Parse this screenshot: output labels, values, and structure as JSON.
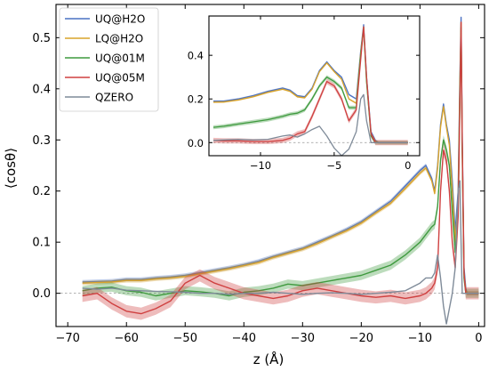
{
  "chart_data": [
    {
      "type": "line",
      "xlabel": "z (Å)",
      "ylabel": "⟨cosθ⟩",
      "xlim": [
        -72,
        1
      ],
      "ylim": [
        -0.065,
        0.565
      ],
      "xticks": [
        -70,
        -60,
        -50,
        -40,
        -30,
        -20,
        -10,
        0
      ],
      "xtick_labels": [
        "−70",
        "−60",
        "−50",
        "−40",
        "−30",
        "−20",
        "−10",
        "0"
      ],
      "yticks": [
        0.0,
        0.1,
        0.2,
        0.3,
        0.4,
        0.5
      ],
      "ytick_labels": [
        "0.0",
        "0.1",
        "0.2",
        "0.3",
        "0.4",
        "0.5"
      ],
      "reference_line": {
        "y": 0.0,
        "style": "dashed",
        "color": "#999999"
      },
      "legend": {
        "position": "top-left",
        "entries": [
          "UQ@H2O",
          "LQ@H2O",
          "UQ@01M",
          "UQ@05M",
          "QZERO"
        ]
      },
      "series": [
        {
          "name": "UQ@H2O",
          "color": "#4a72c4",
          "band": 0.004,
          "x": [
            -67.5,
            -65,
            -62.5,
            -60,
            -57.5,
            -55,
            -52.5,
            -50,
            -47.5,
            -45,
            -42.5,
            -40,
            -37.5,
            -35,
            -32.5,
            -30,
            -27.5,
            -25,
            -22.5,
            -20,
            -17.5,
            -15,
            -12.5,
            -10,
            -9,
            -8,
            -7.5,
            -7,
            -6.5,
            -6,
            -5.5,
            -5,
            -4.5,
            -4,
            -3.5,
            -3.2,
            -3,
            -2.8,
            -2.5,
            -2.2,
            -2,
            -1,
            0
          ],
          "y": [
            0.022,
            0.023,
            0.024,
            0.027,
            0.027,
            0.03,
            0.032,
            0.035,
            0.04,
            0.045,
            0.05,
            0.056,
            0.063,
            0.072,
            0.08,
            0.088,
            0.1,
            0.112,
            0.125,
            0.14,
            0.16,
            0.18,
            0.21,
            0.24,
            0.25,
            0.225,
            0.2,
            0.25,
            0.33,
            0.37,
            0.33,
            0.3,
            0.22,
            0.12,
            0.2,
            0.42,
            0.54,
            0.3,
            0.05,
            0.01,
            0.0,
            0.0,
            0.0
          ]
        },
        {
          "name": "LQ@H2O",
          "color": "#d9a32a",
          "band": 0.004,
          "x": [
            -67.5,
            -65,
            -62.5,
            -60,
            -57.5,
            -55,
            -52.5,
            -50,
            -47.5,
            -45,
            -42.5,
            -40,
            -37.5,
            -35,
            -32.5,
            -30,
            -27.5,
            -25,
            -22.5,
            -20,
            -17.5,
            -15,
            -12.5,
            -10,
            -9,
            -8,
            -7.5,
            -7,
            -6.5,
            -6,
            -5.5,
            -5,
            -4.5,
            -4,
            -3.5,
            -3.2,
            -3,
            -2.8,
            -2.5,
            -2.2,
            -2,
            -1,
            0
          ],
          "y": [
            0.02,
            0.021,
            0.022,
            0.025,
            0.025,
            0.028,
            0.03,
            0.033,
            0.038,
            0.043,
            0.048,
            0.054,
            0.06,
            0.07,
            0.078,
            0.086,
            0.097,
            0.11,
            0.122,
            0.137,
            0.157,
            0.176,
            0.205,
            0.235,
            0.245,
            0.22,
            0.195,
            0.245,
            0.325,
            0.365,
            0.325,
            0.29,
            0.2,
            0.1,
            0.18,
            0.41,
            0.53,
            0.28,
            0.04,
            0.005,
            0.0,
            0.0,
            0.0
          ]
        },
        {
          "name": "UQ@01M",
          "color": "#3f9a3f",
          "band": 0.009,
          "x": [
            -67.5,
            -65,
            -62.5,
            -60,
            -57.5,
            -55,
            -52.5,
            -50,
            -47.5,
            -45,
            -42.5,
            -40,
            -37.5,
            -35,
            -32.5,
            -30,
            -27.5,
            -25,
            -22.5,
            -20,
            -17.5,
            -15,
            -12.5,
            -10,
            -9,
            -8,
            -7.5,
            -7,
            -6.5,
            -6,
            -5.5,
            -5,
            -4.5,
            -4,
            -3.5,
            -3.2,
            -3,
            -2.8,
            -2.5,
            -2.2,
            -2,
            -1,
            0
          ],
          "y": [
            0.005,
            0.01,
            0.012,
            0.005,
            0.002,
            -0.005,
            0.0,
            0.005,
            0.003,
            0.0,
            -0.005,
            0.002,
            0.005,
            0.01,
            0.018,
            0.015,
            0.02,
            0.025,
            0.03,
            0.035,
            0.045,
            0.055,
            0.075,
            0.1,
            0.115,
            0.13,
            0.135,
            0.17,
            0.26,
            0.3,
            0.28,
            0.25,
            0.16,
            0.08,
            0.16,
            0.4,
            0.52,
            0.28,
            0.03,
            0.0,
            0.0,
            0.0,
            0.0
          ]
        },
        {
          "name": "UQ@05M",
          "color": "#cf4040",
          "band": 0.012,
          "x": [
            -67.5,
            -65,
            -62.5,
            -60,
            -57.5,
            -55,
            -52.5,
            -50,
            -47.5,
            -45,
            -42.5,
            -40,
            -37.5,
            -35,
            -32.5,
            -30,
            -27.5,
            -25,
            -22.5,
            -20,
            -17.5,
            -15,
            -12.5,
            -10,
            -9,
            -8,
            -7.5,
            -7,
            -6.5,
            -6,
            -5.5,
            -5,
            -4.5,
            -4,
            -3.5,
            -3.2,
            -3,
            -2.8,
            -2.5,
            -2.2,
            -2,
            -1,
            0
          ],
          "y": [
            -0.005,
            0.0,
            -0.02,
            -0.035,
            -0.04,
            -0.03,
            -0.015,
            0.02,
            0.035,
            0.02,
            0.01,
            0.0,
            -0.005,
            -0.01,
            -0.005,
            0.005,
            0.01,
            0.005,
            0.0,
            -0.005,
            -0.008,
            -0.005,
            -0.01,
            -0.005,
            0.0,
            0.01,
            0.02,
            0.05,
            0.2,
            0.28,
            0.26,
            0.2,
            0.1,
            0.05,
            0.15,
            0.38,
            0.53,
            0.3,
            0.04,
            0.0,
            0.0,
            0.0,
            0.0
          ]
        },
        {
          "name": "QZERO",
          "color": "#7f8b99",
          "band": 0.0,
          "x": [
            -67.5,
            -65,
            -62.5,
            -60,
            -57.5,
            -55,
            -52.5,
            -50,
            -47.5,
            -45,
            -42.5,
            -40,
            -37.5,
            -35,
            -32.5,
            -30,
            -27.5,
            -25,
            -22.5,
            -20,
            -17.5,
            -15,
            -12.5,
            -10,
            -9,
            -8,
            -7.5,
            -7,
            -6.5,
            -6,
            -5.5,
            -5,
            -4.5,
            -4,
            -3.5,
            -3.2,
            -3,
            -2.8,
            -2.5,
            -2.2,
            -2,
            -1,
            0
          ],
          "y": [
            0.01,
            0.008,
            0.01,
            0.006,
            0.005,
            0.004,
            0.003,
            0.002,
            0.0,
            0.0,
            -0.002,
            0.0,
            0.0,
            0.002,
            0.0,
            -0.002,
            0.0,
            0.001,
            0.0,
            -0.002,
            0.0,
            0.002,
            0.005,
            0.02,
            0.03,
            0.03,
            0.04,
            0.075,
            0.03,
            -0.025,
            -0.06,
            -0.03,
            0.0,
            0.05,
            0.2,
            0.22,
            0.1,
            0.0,
            0.0,
            0.0,
            0.0,
            0.0,
            0.0
          ]
        }
      ]
    },
    {
      "type": "line",
      "role": "inset",
      "xlabel": "",
      "ylabel": "",
      "xlim": [
        -13.5,
        0.8
      ],
      "ylim": [
        -0.06,
        0.58
      ],
      "xticks": [
        -10,
        -5,
        0
      ],
      "xtick_labels": [
        "−10",
        "−5",
        "0"
      ],
      "yticks": [
        0.0,
        0.2,
        0.4
      ],
      "ytick_labels": [
        "0.0",
        "0.2",
        "0.4"
      ],
      "reference_line": {
        "y": 0.0,
        "style": "dashed",
        "color": "#999999"
      },
      "series": [
        {
          "name": "UQ@H2O",
          "color": "#4a72c4",
          "band": 0.004,
          "x": [
            -13.2,
            -12.5,
            -11.5,
            -10.5,
            -9.5,
            -8.5,
            -8,
            -7.5,
            -7,
            -6.5,
            -6,
            -5.5,
            -5,
            -4.5,
            -4,
            -3.5,
            -3.2,
            -3,
            -2.8,
            -2.5,
            -2.2,
            -2,
            -1,
            0
          ],
          "y": [
            0.19,
            0.19,
            0.2,
            0.215,
            0.235,
            0.25,
            0.24,
            0.215,
            0.21,
            0.25,
            0.33,
            0.37,
            0.33,
            0.3,
            0.22,
            0.2,
            0.42,
            0.54,
            0.3,
            0.05,
            0.01,
            0.0,
            0.0,
            0.0
          ]
        },
        {
          "name": "LQ@H2O",
          "color": "#d9a32a",
          "band": 0.004,
          "x": [
            -13.2,
            -12.5,
            -11.5,
            -10.5,
            -9.5,
            -8.5,
            -8,
            -7.5,
            -7,
            -6.5,
            -6,
            -5.5,
            -5,
            -4.5,
            -4,
            -3.5,
            -3.2,
            -3,
            -2.8,
            -2.5,
            -2.2,
            -2,
            -1,
            0
          ],
          "y": [
            0.185,
            0.186,
            0.195,
            0.21,
            0.23,
            0.245,
            0.235,
            0.21,
            0.205,
            0.245,
            0.325,
            0.365,
            0.325,
            0.29,
            0.2,
            0.18,
            0.41,
            0.53,
            0.28,
            0.04,
            0.005,
            0.0,
            0.0,
            0.0
          ]
        },
        {
          "name": "UQ@01M",
          "color": "#3f9a3f",
          "band": 0.009,
          "x": [
            -13.2,
            -12.5,
            -11.5,
            -10.5,
            -9.5,
            -8.5,
            -8,
            -7.5,
            -7,
            -6.5,
            -6,
            -5.5,
            -5,
            -4.5,
            -4,
            -3.5,
            -3.2,
            -3,
            -2.8,
            -2.5,
            -2.2,
            -2,
            -1,
            0
          ],
          "y": [
            0.07,
            0.075,
            0.085,
            0.095,
            0.105,
            0.12,
            0.13,
            0.135,
            0.15,
            0.2,
            0.26,
            0.3,
            0.28,
            0.25,
            0.16,
            0.16,
            0.4,
            0.52,
            0.28,
            0.03,
            0.0,
            0.0,
            0.0,
            0.0
          ]
        },
        {
          "name": "UQ@05M",
          "color": "#cf4040",
          "band": 0.012,
          "x": [
            -13.2,
            -12.5,
            -11.5,
            -10.5,
            -9.5,
            -8.5,
            -8,
            -7.5,
            -7,
            -6.5,
            -6,
            -5.5,
            -5,
            -4.5,
            -4,
            -3.5,
            -3.2,
            -3,
            -2.8,
            -2.5,
            -2.2,
            -2,
            -1,
            0
          ],
          "y": [
            0.01,
            0.008,
            0.008,
            0.005,
            0.005,
            0.01,
            0.02,
            0.04,
            0.05,
            0.12,
            0.2,
            0.28,
            0.26,
            0.2,
            0.1,
            0.15,
            0.38,
            0.53,
            0.3,
            0.04,
            0.0,
            0.0,
            0.0,
            0.0
          ]
        },
        {
          "name": "QZERO",
          "color": "#7f8b99",
          "band": 0.0,
          "x": [
            -13.2,
            -12.5,
            -11.5,
            -10.5,
            -9.5,
            -8.5,
            -8,
            -7.5,
            -7,
            -6.5,
            -6,
            -5.5,
            -5,
            -4.5,
            -4,
            -3.5,
            -3.2,
            -3,
            -2.8,
            -2.5,
            -2.2,
            -2,
            -1,
            0
          ],
          "y": [
            0.01,
            0.012,
            0.015,
            0.012,
            0.015,
            0.03,
            0.035,
            0.025,
            0.04,
            0.06,
            0.075,
            0.03,
            -0.025,
            -0.06,
            -0.03,
            0.05,
            0.2,
            0.22,
            0.1,
            0.0,
            0.0,
            0.0,
            0.0,
            0.0
          ]
        }
      ]
    }
  ]
}
